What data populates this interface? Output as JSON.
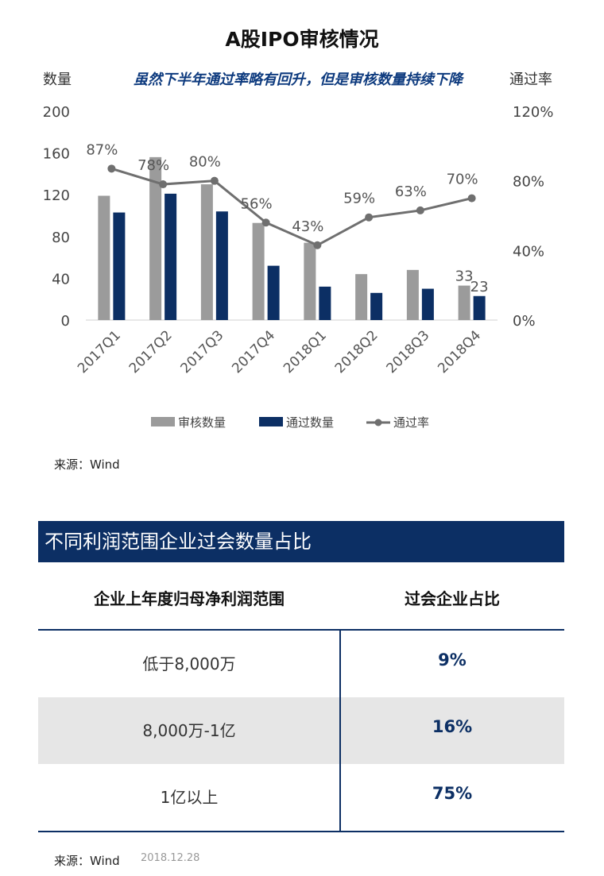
{
  "chart_data": {
    "type": "bar+line",
    "title": "A股IPO审核情况",
    "subtitle": "虽然下半年通过率略有回升，但是审核数量持续下降",
    "ylabel_left": "数量",
    "ylabel_right": "通过率",
    "categories": [
      "2017Q1",
      "2017Q2",
      "2017Q3",
      "2017Q4",
      "2018Q1",
      "2018Q2",
      "2018Q3",
      "2018Q4"
    ],
    "ylim_left": [
      0,
      200
    ],
    "yticks_left": [
      "0",
      "40",
      "80",
      "120",
      "160",
      "200"
    ],
    "ylim_right": [
      0,
      1.2
    ],
    "yticks_right": [
      "0%",
      "40%",
      "80%",
      "120%"
    ],
    "series": [
      {
        "name": "审核数量",
        "kind": "bar",
        "color": "#9b9b9b",
        "values": [
          119,
          156,
          130,
          93,
          74,
          44,
          48,
          33
        ]
      },
      {
        "name": "通过数量",
        "kind": "bar",
        "color": "#0c2f64",
        "values": [
          103,
          121,
          104,
          52,
          32,
          26,
          30,
          23
        ]
      },
      {
        "name": "通过率",
        "kind": "line",
        "color": "#6f6f6f",
        "values": [
          0.87,
          0.78,
          0.8,
          0.56,
          0.43,
          0.59,
          0.63,
          0.7
        ]
      }
    ],
    "line_labels": [
      "87%",
      "78%",
      "80%",
      "56%",
      "43%",
      "59%",
      "63%",
      "70%"
    ],
    "bar_labels": [
      {
        "index": 7,
        "series": 0,
        "text": "33"
      },
      {
        "index": 7,
        "series": 1,
        "text": "23"
      }
    ],
    "legend": [
      "审核数量",
      "通过数量",
      "通过率"
    ],
    "legend_position": "bottom"
  },
  "chart_source": "来源：Wind",
  "table": {
    "title": "不同利润范围企业过会数量占比",
    "headers": [
      "企业上年度归母净利润范围",
      "过会企业占比"
    ],
    "rows": [
      {
        "range": "低于8,000万",
        "share": "9%"
      },
      {
        "range": "8,000万-1亿",
        "share": "16%"
      },
      {
        "range": "1亿以上",
        "share": "75%"
      }
    ],
    "source": "来源：Wind",
    "date": "2018.12.28"
  }
}
